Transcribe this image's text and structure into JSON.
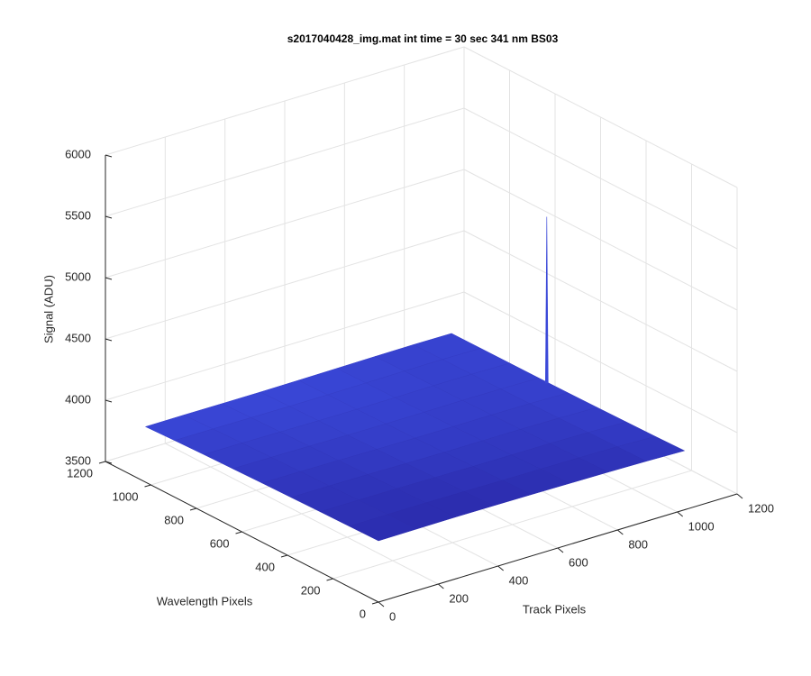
{
  "chart_data": {
    "type": "surface3d",
    "title": "s2017040428_img.mat int time = 30 sec  341 nm BS03",
    "xlabel": "Track Pixels",
    "ylabel": "Wavelength Pixels",
    "zlabel": "Signal (ADU)",
    "xlim": [
      0,
      1200
    ],
    "xticks": [
      0,
      200,
      400,
      600,
      800,
      1000,
      1200
    ],
    "ylim": [
      0,
      1200
    ],
    "yticks": [
      0,
      200,
      400,
      600,
      800,
      1000,
      1200
    ],
    "zlim": [
      3500,
      6000
    ],
    "zticks": [
      3500,
      4000,
      4500,
      5000,
      5500,
      6000
    ],
    "grid": true,
    "colormap": [
      "#26229e",
      "#3a48d8"
    ],
    "x": [
      0,
      128,
      256,
      384,
      512,
      640,
      768,
      896,
      1024
    ],
    "y": [
      0,
      128,
      256,
      384,
      512,
      640,
      768,
      896,
      1024
    ],
    "z": [
      [
        4000,
        4002,
        4004,
        4003,
        4001,
        3998,
        3995,
        3990,
        3982
      ],
      [
        3996,
        3998,
        3999,
        3997,
        3994,
        3992,
        3990,
        3986,
        3976
      ],
      [
        3992,
        3993,
        3992,
        3989,
        3986,
        3985,
        3984,
        3980,
        3972
      ],
      [
        3987,
        3987,
        3985,
        3981,
        3978,
        3978,
        3978,
        3975,
        3968
      ],
      [
        3982,
        3981,
        3978,
        3974,
        3972,
        3972,
        3973,
        3971,
        3965
      ],
      [
        3976,
        3975,
        3972,
        3968,
        3966,
        3967,
        3969,
        3968,
        3963
      ],
      [
        3970,
        3969,
        3966,
        3963,
        3962,
        3963,
        3966,
        3966,
        3962
      ],
      [
        3962,
        3962,
        3960,
        3958,
        3958,
        3960,
        3963,
        3964,
        3961
      ],
      [
        3952,
        3953,
        3952,
        3952,
        3954,
        3957,
        3960,
        3962,
        3960
      ]
    ],
    "peak": {
      "x": 1020,
      "y": 600,
      "z": 5320
    }
  }
}
